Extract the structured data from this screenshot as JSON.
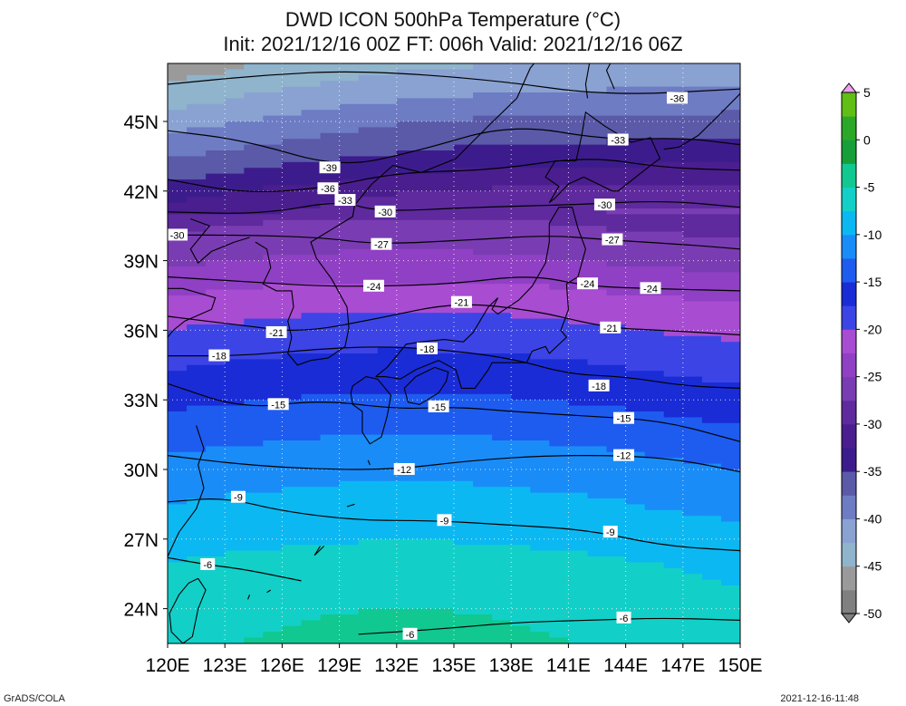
{
  "title": {
    "line1": "DWD ICON 500hPa Temperature (°C)",
    "line2": "Init: 2021/12/16 00Z  FT: 006h  Valid: 2021/12/16 06Z"
  },
  "axes": {
    "lat_ticks": [
      "45N",
      "42N",
      "39N",
      "36N",
      "33N",
      "30N",
      "27N",
      "24N"
    ],
    "lon_ticks": [
      "120E",
      "123E",
      "126E",
      "129E",
      "132E",
      "135E",
      "138E",
      "141E",
      "144E",
      "147E",
      "150E"
    ],
    "lat_range": [
      22.5,
      47.5
    ],
    "lon_range": [
      120,
      150
    ]
  },
  "colorbar": {
    "labels": [
      "5",
      "0",
      "-5",
      "-10",
      "-15",
      "-20",
      "-25",
      "-30",
      "-35",
      "-40",
      "-45",
      "-50"
    ],
    "range": [
      -50,
      5
    ]
  },
  "contour_labels": [
    {
      "text": "-36",
      "lon": 146.7,
      "lat": 46.0
    },
    {
      "text": "-33",
      "lon": 143.6,
      "lat": 44.2
    },
    {
      "text": "-39",
      "lon": 128.5,
      "lat": 43.0
    },
    {
      "text": "-36",
      "lon": 128.4,
      "lat": 42.1
    },
    {
      "text": "-33",
      "lon": 129.3,
      "lat": 41.6
    },
    {
      "text": "-30",
      "lon": 131.4,
      "lat": 41.1
    },
    {
      "text": "-30",
      "lon": 142.9,
      "lat": 41.4
    },
    {
      "text": "-30",
      "lon": 120.5,
      "lat": 40.1
    },
    {
      "text": "-27",
      "lon": 131.2,
      "lat": 39.7
    },
    {
      "text": "-27",
      "lon": 143.3,
      "lat": 39.9
    },
    {
      "text": "-24",
      "lon": 130.8,
      "lat": 37.9
    },
    {
      "text": "-24",
      "lon": 142.0,
      "lat": 38.0
    },
    {
      "text": "-24",
      "lon": 145.3,
      "lat": 37.8
    },
    {
      "text": "-21",
      "lon": 135.4,
      "lat": 37.2
    },
    {
      "text": "-21",
      "lon": 125.7,
      "lat": 35.9
    },
    {
      "text": "-21",
      "lon": 143.2,
      "lat": 36.1
    },
    {
      "text": "-18",
      "lon": 133.6,
      "lat": 35.2
    },
    {
      "text": "-18",
      "lon": 122.7,
      "lat": 34.9
    },
    {
      "text": "-18",
      "lon": 142.6,
      "lat": 33.6
    },
    {
      "text": "-15",
      "lon": 125.8,
      "lat": 32.8
    },
    {
      "text": "-15",
      "lon": 134.2,
      "lat": 32.7
    },
    {
      "text": "-15",
      "lon": 143.9,
      "lat": 32.2
    },
    {
      "text": "-12",
      "lon": 132.4,
      "lat": 30.0
    },
    {
      "text": "-12",
      "lon": 143.9,
      "lat": 30.6
    },
    {
      "text": "-9",
      "lon": 123.7,
      "lat": 28.8
    },
    {
      "text": "-9",
      "lon": 134.5,
      "lat": 27.8
    },
    {
      "text": "-9",
      "lon": 143.2,
      "lat": 27.3
    },
    {
      "text": "-6",
      "lon": 122.1,
      "lat": 25.9
    },
    {
      "text": "-6",
      "lon": 143.9,
      "lat": 23.6
    },
    {
      "text": "-6",
      "lon": 132.7,
      "lat": 22.9
    }
  ],
  "footer": {
    "left": "GrADS/COLA",
    "right": "2021-12-16-11:48"
  }
}
